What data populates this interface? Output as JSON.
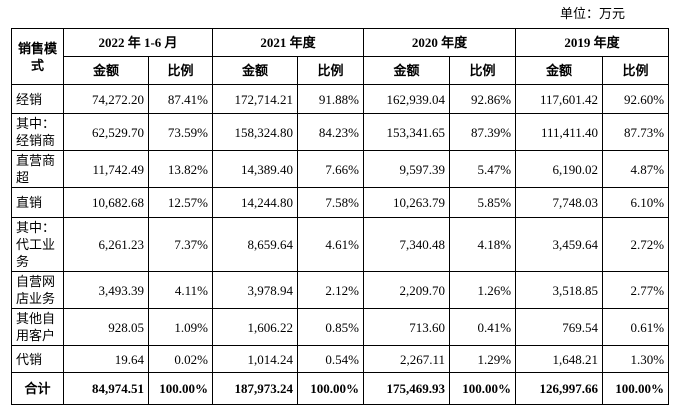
{
  "unit": "单位：万元",
  "table": {
    "header": {
      "mode": "销售模式",
      "periods": [
        "2022 年 1-6 月",
        "2021 年度",
        "2020 年度",
        "2019 年度"
      ],
      "subheaders": [
        "金额",
        "比例",
        "金额",
        "比例",
        "金额",
        "比例",
        "金额",
        "比例"
      ]
    },
    "rows": [
      [
        "经销",
        "74,272.20",
        "87.41%",
        "172,714.21",
        "91.88%",
        "162,939.04",
        "92.86%",
        "117,601.42",
        "92.60%"
      ],
      [
        "其中：经销商",
        "62,529.70",
        "73.59%",
        "158,324.80",
        "84.23%",
        "153,341.65",
        "87.39%",
        "111,411.40",
        "87.73%"
      ],
      [
        "直营商超",
        "11,742.49",
        "13.82%",
        "14,389.40",
        "7.66%",
        "9,597.39",
        "5.47%",
        "6,190.02",
        "4.87%"
      ],
      [
        "直销",
        "10,682.68",
        "12.57%",
        "14,244.80",
        "7.58%",
        "10,263.79",
        "5.85%",
        "7,748.03",
        "6.10%"
      ],
      [
        "其中：代工业务",
        "6,261.23",
        "7.37%",
        "8,659.64",
        "4.61%",
        "7,340.48",
        "4.18%",
        "3,459.64",
        "2.72%"
      ],
      [
        "自营网店业务",
        "3,493.39",
        "4.11%",
        "3,978.94",
        "2.12%",
        "2,209.70",
        "1.26%",
        "3,518.85",
        "2.77%"
      ],
      [
        "其他自用客户",
        "928.05",
        "1.09%",
        "1,606.22",
        "0.85%",
        "713.60",
        "0.41%",
        "769.54",
        "0.61%"
      ],
      [
        "代销",
        "19.64",
        "0.02%",
        "1,014.24",
        "0.54%",
        "2,267.11",
        "1.29%",
        "1,648.21",
        "1.30%"
      ],
      [
        "合计",
        "84,974.51",
        "100.00%",
        "187,973.24",
        "100.00%",
        "175,469.93",
        "100.00%",
        "126,997.66",
        "100.00%"
      ]
    ]
  }
}
